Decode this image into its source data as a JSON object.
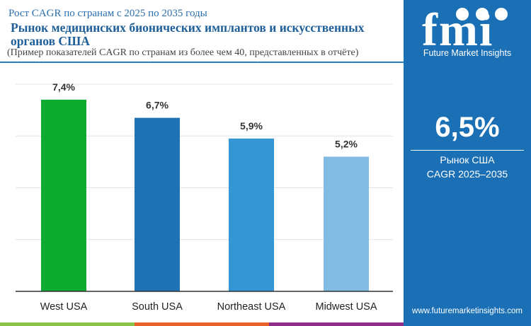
{
  "header": {
    "subtitle": "Рост CAGR по странам с 2025 по 2035 годы",
    "title": "Рынок медицинских бионических имплантов и искусственных органов США",
    "note": "(Пример показателей CAGR по странам из более чем 40, представленных в отчёте)"
  },
  "sidebar": {
    "brand": "Future Market Insights",
    "value": "6,5%",
    "label1": "Рынок США",
    "label2": "CAGR 2025–2035",
    "url": "www.futuremarketinsights.com",
    "logo_text": "fmi",
    "bg": "#1a6fb5"
  },
  "chart_data": {
    "type": "bar",
    "categories": [
      "West USA",
      "South USA",
      "Northeast USA",
      "Midwest USA"
    ],
    "values": [
      7.4,
      6.7,
      5.9,
      5.2
    ],
    "data_labels": [
      "7,4%",
      "6,7%",
      "5,9%",
      "5,2%"
    ],
    "colors": [
      "#0dab2f",
      "#1f72b3",
      "#3596d6",
      "#82bbe3"
    ],
    "ylim": [
      0,
      8
    ],
    "grid": true,
    "title": "",
    "xlabel": "",
    "ylabel": ""
  }
}
